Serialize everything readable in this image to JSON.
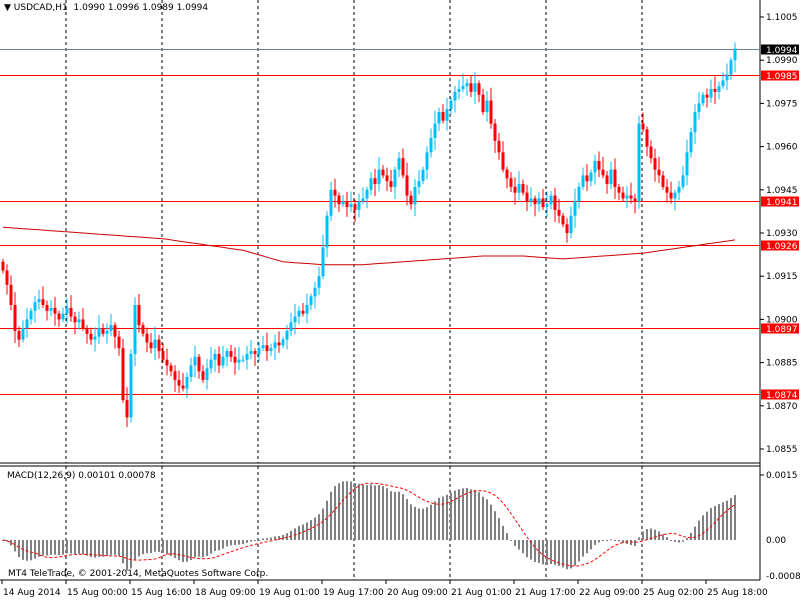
{
  "header": {
    "symbol": "USDCAD,H1",
    "open": "1.0990",
    "high": "1.0996",
    "low": "1.0989",
    "close": "1.0994"
  },
  "macd": {
    "label": "MACD(12,26,9)",
    "main": "0.00101",
    "signal": "0.00078",
    "ticks": [
      "0.0015",
      "0.00",
      "-0.00084"
    ]
  },
  "copyright": "MT4 TeleTrade, © 2001-2014, MetaQuotes Software Corp.",
  "colors": {
    "bull": "#00bfff",
    "bear": "#ff0000",
    "level": "#ff0000",
    "current": "#708090",
    "histogram": "#808080",
    "signal": "#ff0000"
  },
  "chart_data": {
    "type": "candlestick",
    "timeframe": "H1",
    "price_ticks": [
      "1.1005",
      "1.0990",
      "1.0975",
      "1.0960",
      "1.0945",
      "1.0930",
      "1.0915",
      "1.0900",
      "1.0885",
      "1.0870",
      "1.0855"
    ],
    "ylim": [
      1.085,
      1.101
    ],
    "time_labels": [
      "14 Aug 2014",
      "15 Aug 00:00",
      "15 Aug 16:00",
      "18 Aug 09:00",
      "19 Aug 01:00",
      "19 Aug 17:00",
      "20 Aug 09:00",
      "21 Aug 01:00",
      "21 Aug 17:00",
      "22 Aug 09:00",
      "25 Aug 02:00",
      "25 Aug 18:00"
    ],
    "current_price": "1.0994",
    "levels": [
      "1.0985",
      "1.0941",
      "1.0926",
      "1.0897",
      "1.0874"
    ],
    "closes": [
      1.0917,
      1.0912,
      1.0905,
      1.0896,
      1.0893,
      1.0897,
      1.09,
      1.0903,
      1.0906,
      1.0907,
      1.0905,
      1.0903,
      1.0904,
      1.0902,
      1.09,
      1.0902,
      1.0904,
      1.0901,
      1.0899,
      1.09,
      1.0897,
      1.0895,
      1.0893,
      1.0894,
      1.0897,
      1.0895,
      1.0896,
      1.0898,
      1.0894,
      1.089,
      1.0872,
      1.0866,
      1.0888,
      1.0905,
      1.0898,
      1.0895,
      1.0892,
      1.089,
      1.0893,
      1.0889,
      1.0886,
      1.0884,
      1.0882,
      1.0879,
      1.0877,
      1.0876,
      1.088,
      1.0884,
      1.0887,
      1.0882,
      1.0879,
      1.0883,
      1.0886,
      1.0888,
      1.0884,
      1.0887,
      1.0889,
      1.0887,
      1.0885,
      1.0886,
      1.0886,
      1.0888,
      1.0889,
      1.0888,
      1.089,
      1.0891,
      1.0889,
      1.089,
      1.0892,
      1.0891,
      1.0893,
      1.0896,
      1.0899,
      1.0901,
      1.0903,
      1.0902,
      1.0905,
      1.0908,
      1.0911,
      1.0915,
      1.0925,
      1.0936,
      1.0945,
      1.0943,
      1.094,
      1.0941,
      1.0939,
      1.094,
      1.0938,
      1.0941,
      1.0942,
      1.0945,
      1.0949,
      1.0947,
      1.0952,
      1.095,
      1.0948,
      1.0946,
      1.0952,
      1.0956,
      1.095,
      1.0943,
      1.094,
      1.0946,
      1.0948,
      1.0952,
      1.0958,
      1.0963,
      1.0968,
      1.0972,
      1.0969,
      1.0973,
      1.0976,
      1.0979,
      1.098,
      1.0981,
      1.0982,
      1.0979,
      1.0982,
      1.0978,
      1.0972,
      1.0976,
      1.0968,
      1.0962,
      1.0958,
      1.0952,
      1.0949,
      1.0946,
      1.0944,
      1.0947,
      1.0944,
      1.0941,
      1.0942,
      1.094,
      1.0942,
      1.0939,
      1.094,
      1.0943,
      1.0938,
      1.0936,
      1.0933,
      1.093,
      1.0936,
      1.0941,
      1.0946,
      1.095,
      1.0948,
      1.0951,
      1.0955,
      1.0952,
      1.095,
      1.0947,
      1.0952,
      1.0946,
      1.0944,
      1.0942,
      1.0943,
      1.0942,
      1.0941,
      1.0968,
      1.0966,
      1.096,
      1.0956,
      1.0952,
      1.095,
      1.0946,
      1.0944,
      1.0942,
      1.0944,
      1.0946,
      1.095,
      1.0958,
      1.0965,
      1.0972,
      1.0975,
      1.0978,
      1.0977,
      1.098,
      1.0979,
      1.0981,
      1.0983,
      1.0985,
      1.099,
      1.0994
    ],
    "moving_average": [
      1.0932,
      1.0931,
      1.093,
      1.0929,
      1.0928,
      1.0926,
      1.0924,
      1.092,
      1.0919,
      1.0919,
      1.092,
      1.0921,
      1.0922,
      1.0922,
      1.0921,
      1.0922,
      1.0923,
      1.0925,
      1.0927
    ]
  }
}
